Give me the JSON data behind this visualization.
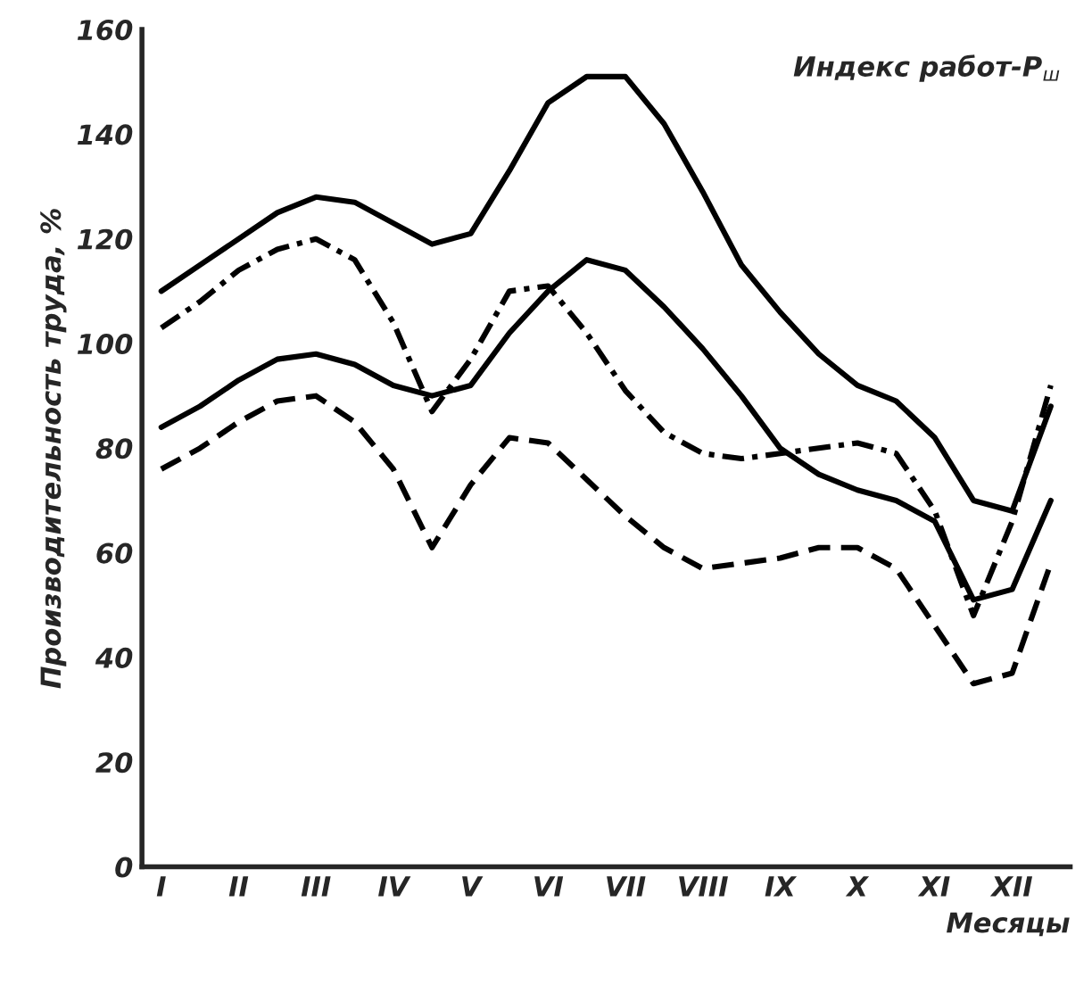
{
  "chart_data": {
    "type": "line",
    "xlabel": "Месяцы",
    "ylabel": "Производительность труда, %",
    "annotations": [
      "Индекс работ-P$_{ш}$"
    ],
    "categories": [
      "I",
      null,
      "II",
      null,
      "III",
      null,
      "IV",
      null,
      "V",
      null,
      "VI",
      null,
      "VII",
      null,
      "VIII",
      null,
      "IX",
      null,
      "X",
      null,
      "XI",
      null,
      "XII",
      null
    ],
    "ylim": [
      0,
      160
    ],
    "yticks": [
      0,
      20,
      40,
      60,
      80,
      100,
      120,
      140,
      160
    ],
    "grid": false,
    "legend": false,
    "marker": "none",
    "series": [
      {
        "color": "#000000",
        "line_style": "solid",
        "values": [
          110,
          115,
          120,
          125,
          128,
          127,
          123,
          119,
          121,
          133,
          146,
          151,
          151,
          142,
          129,
          115,
          106,
          98,
          92,
          89,
          82,
          70,
          68,
          88
        ]
      },
      {
        "color": "#000000",
        "line_style": "dashdot",
        "values": [
          103,
          108,
          114,
          118,
          120,
          116,
          104,
          87,
          97,
          110,
          111,
          102,
          91,
          83,
          79,
          78,
          79,
          80,
          81,
          79,
          68,
          48,
          66,
          92
        ]
      },
      {
        "color": "#000000",
        "line_style": "solid",
        "values": [
          84,
          88,
          93,
          97,
          98,
          96,
          92,
          90,
          92,
          102,
          110,
          116,
          114,
          107,
          99,
          90,
          80,
          75,
          72,
          70,
          66,
          51,
          53,
          70
        ]
      },
      {
        "color": "#000000",
        "line_style": "dashed",
        "values": [
          76,
          80,
          85,
          89,
          90,
          85,
          76,
          61,
          73,
          82,
          81,
          74,
          67,
          61,
          57,
          58,
          59,
          61,
          61,
          57,
          46,
          35,
          37,
          58
        ]
      }
    ]
  }
}
